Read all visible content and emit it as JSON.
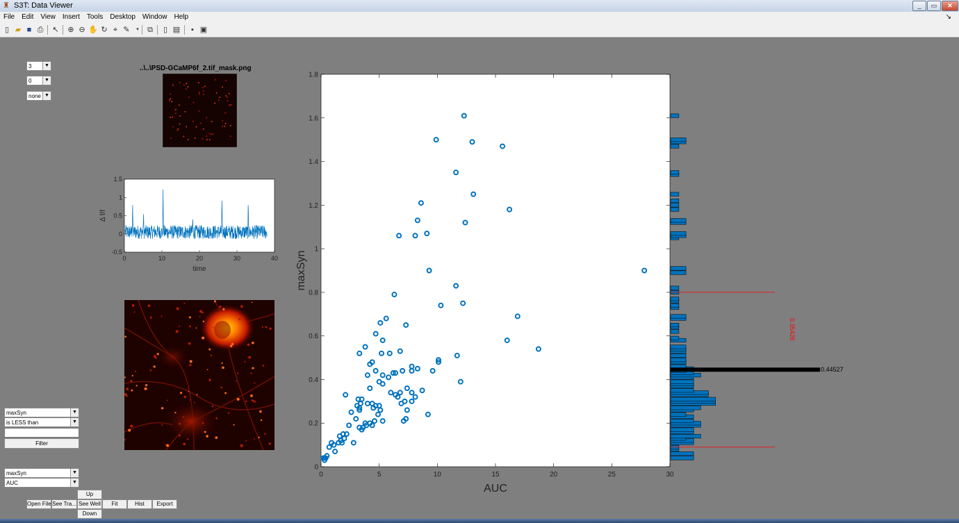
{
  "window": {
    "title": "S3T: Data Viewer",
    "minimize": "_",
    "maximize": "▭",
    "close": "✕"
  },
  "menu": [
    "File",
    "Edit",
    "View",
    "Insert",
    "Tools",
    "Desktop",
    "Window",
    "Help"
  ],
  "toolbar_icons": [
    "new-file-icon",
    "open-folder-icon",
    "save-icon",
    "print-icon",
    "pointer-icon",
    "zoom-in-icon",
    "zoom-out-icon",
    "pan-icon",
    "rotate-icon",
    "data-cursor-icon",
    "brush-icon",
    "link-icon",
    "colorbar-icon",
    "legend-icon",
    "hide-plot-tools-icon",
    "show-plot-tools-icon"
  ],
  "controls": {
    "dropdown1": "3",
    "dropdown2": "0",
    "dropdown3": "none",
    "filter_variable": "maxSyn",
    "filter_condition": "is LESS than",
    "filter_value": "",
    "filter_button": "Filter",
    "y_variable": "maxSyn",
    "x_variable": "AUC",
    "buttons": {
      "up": "Up",
      "down": "Down",
      "open_file": "Open File",
      "see_trace": "See Tra...",
      "see_well": "See Well",
      "fit": "Fit",
      "hist": "Hist",
      "export": "Export"
    }
  },
  "mask_image": {
    "title": "..\\..\\PSD-GCaMP6f_2.tif_mask.png"
  },
  "trace_plot": {
    "xlabel": "time",
    "ylabel": "Δ f/f",
    "xticks": [
      "0",
      "10",
      "20",
      "30",
      "40"
    ],
    "yticks": [
      "1.5",
      "1",
      "0.5",
      "0",
      "-0.5"
    ]
  },
  "scatter_labels": {
    "xlabel": "AUC",
    "ylabel": "maxSyn",
    "xticks": [
      "0",
      "5",
      "10",
      "15",
      "20",
      "25",
      "30"
    ],
    "yticks": [
      "0",
      "0.2",
      "0.4",
      "0.6",
      "0.8",
      "1",
      "1.2",
      "1.4",
      "1.6",
      "1.8"
    ],
    "hist_mean_label": "0.44527",
    "hist_range_label": "0.35426"
  },
  "colors": {
    "marker": "#0072bd",
    "threshold": "#ff0000",
    "mean_bar": "#000000",
    "background": "#7f7f7f"
  },
  "chart_data": [
    {
      "type": "scatter",
      "xlabel": "AUC",
      "ylabel": "maxSyn",
      "xlim": [
        0,
        30
      ],
      "ylim": [
        0,
        1.8
      ],
      "points": [
        [
          12.3,
          1.61
        ],
        [
          9.9,
          1.5
        ],
        [
          13.0,
          1.49
        ],
        [
          15.6,
          1.47
        ],
        [
          11.6,
          1.35
        ],
        [
          13.1,
          1.25
        ],
        [
          8.6,
          1.21
        ],
        [
          16.2,
          1.18
        ],
        [
          8.3,
          1.13
        ],
        [
          12.4,
          1.12
        ],
        [
          6.7,
          1.06
        ],
        [
          8.1,
          1.06
        ],
        [
          9.1,
          1.07
        ],
        [
          9.3,
          0.9
        ],
        [
          27.8,
          0.9
        ],
        [
          11.6,
          0.83
        ],
        [
          6.3,
          0.79
        ],
        [
          12.2,
          0.75
        ],
        [
          10.3,
          0.74
        ],
        [
          16.9,
          0.69
        ],
        [
          5.1,
          0.66
        ],
        [
          5.6,
          0.68
        ],
        [
          7.3,
          0.65
        ],
        [
          4.7,
          0.61
        ],
        [
          5.3,
          0.58
        ],
        [
          16.0,
          0.58
        ],
        [
          18.7,
          0.54
        ],
        [
          3.8,
          0.55
        ],
        [
          3.3,
          0.52
        ],
        [
          5.2,
          0.52
        ],
        [
          5.9,
          0.52
        ],
        [
          6.8,
          0.53
        ],
        [
          11.7,
          0.51
        ],
        [
          4.4,
          0.48
        ],
        [
          4.2,
          0.47
        ],
        [
          10.1,
          0.49
        ],
        [
          10.1,
          0.48
        ],
        [
          4.7,
          0.44
        ],
        [
          5.3,
          0.42
        ],
        [
          6.2,
          0.43
        ],
        [
          6.4,
          0.43
        ],
        [
          7.0,
          0.44
        ],
        [
          7.8,
          0.46
        ],
        [
          8.3,
          0.45
        ],
        [
          7.8,
          0.44
        ],
        [
          9.6,
          0.44
        ],
        [
          4.0,
          0.42
        ],
        [
          5.8,
          0.41
        ],
        [
          5.0,
          0.39
        ],
        [
          5.3,
          0.38
        ],
        [
          12.0,
          0.39
        ],
        [
          4.2,
          0.36
        ],
        [
          7.4,
          0.36
        ],
        [
          6.0,
          0.34
        ],
        [
          6.4,
          0.33
        ],
        [
          6.8,
          0.34
        ],
        [
          7.8,
          0.34
        ],
        [
          8.7,
          0.35
        ],
        [
          2.1,
          0.33
        ],
        [
          3.2,
          0.31
        ],
        [
          3.5,
          0.31
        ],
        [
          6.6,
          0.32
        ],
        [
          8.1,
          0.32
        ],
        [
          3.4,
          0.29
        ],
        [
          3.1,
          0.28
        ],
        [
          4.0,
          0.29
        ],
        [
          4.4,
          0.29
        ],
        [
          4.7,
          0.28
        ],
        [
          5.0,
          0.28
        ],
        [
          7.2,
          0.3
        ],
        [
          7.8,
          0.3
        ],
        [
          3.3,
          0.27
        ],
        [
          4.5,
          0.27
        ],
        [
          5.1,
          0.26
        ],
        [
          6.9,
          0.29
        ],
        [
          3.3,
          0.26
        ],
        [
          2.6,
          0.25
        ],
        [
          4.9,
          0.24
        ],
        [
          7.4,
          0.26
        ],
        [
          9.2,
          0.24
        ],
        [
          3.0,
          0.22
        ],
        [
          4.6,
          0.21
        ],
        [
          7.3,
          0.22
        ],
        [
          3.8,
          0.2
        ],
        [
          4.2,
          0.2
        ],
        [
          5.3,
          0.21
        ],
        [
          7.1,
          0.21
        ],
        [
          3.6,
          0.18
        ],
        [
          3.9,
          0.19
        ],
        [
          4.4,
          0.19
        ],
        [
          3.3,
          0.18
        ],
        [
          2.4,
          0.19
        ],
        [
          3.5,
          0.17
        ],
        [
          2.2,
          0.15
        ],
        [
          1.9,
          0.15
        ],
        [
          1.6,
          0.14
        ],
        [
          2.0,
          0.13
        ],
        [
          1.7,
          0.12
        ],
        [
          1.5,
          0.11
        ],
        [
          2.8,
          0.11
        ],
        [
          1.8,
          0.11
        ],
        [
          0.9,
          0.11
        ],
        [
          1.1,
          0.1
        ],
        [
          0.7,
          0.09
        ],
        [
          1.2,
          0.07
        ],
        [
          0.5,
          0.05
        ],
        [
          0.3,
          0.04
        ],
        [
          0.4,
          0.04
        ],
        [
          0.2,
          0.04
        ],
        [
          0.3,
          0.03
        ]
      ]
    },
    {
      "type": "bar",
      "orientation": "horizontal",
      "ylim": [
        0,
        1.8
      ],
      "bins": [
        [
          0.04,
          39
        ],
        [
          0.06,
          39
        ],
        [
          0.08,
          14
        ],
        [
          0.09,
          14
        ],
        [
          0.11,
          39
        ],
        [
          0.12,
          39
        ],
        [
          0.13,
          26
        ],
        [
          0.14,
          51
        ],
        [
          0.16,
          39
        ],
        [
          0.17,
          39
        ],
        [
          0.19,
          51
        ],
        [
          0.2,
          51
        ],
        [
          0.21,
          39
        ],
        [
          0.23,
          39
        ],
        [
          0.24,
          26
        ],
        [
          0.26,
          39
        ],
        [
          0.27,
          51
        ],
        [
          0.29,
          76
        ],
        [
          0.3,
          76
        ],
        [
          0.31,
          76
        ],
        [
          0.33,
          64
        ],
        [
          0.34,
          64
        ],
        [
          0.35,
          39
        ],
        [
          0.37,
          39
        ],
        [
          0.38,
          39
        ],
        [
          0.39,
          39
        ],
        [
          0.41,
          39
        ],
        [
          0.42,
          51
        ],
        [
          0.43,
          39
        ],
        [
          0.44,
          26
        ],
        [
          0.45,
          39
        ],
        [
          0.46,
          26
        ],
        [
          0.48,
          26
        ],
        [
          0.49,
          26
        ],
        [
          0.51,
          26
        ],
        [
          0.53,
          26
        ],
        [
          0.54,
          26
        ],
        [
          0.55,
          26
        ],
        [
          0.58,
          26
        ],
        [
          0.59,
          14
        ],
        [
          0.62,
          14
        ],
        [
          0.64,
          14
        ],
        [
          0.65,
          14
        ],
        [
          0.68,
          26
        ],
        [
          0.69,
          26
        ],
        [
          0.73,
          14
        ],
        [
          0.74,
          14
        ],
        [
          0.76,
          14
        ],
        [
          0.77,
          14
        ],
        [
          0.8,
          14
        ],
        [
          0.82,
          14
        ],
        [
          0.89,
          26
        ],
        [
          0.91,
          26
        ],
        [
          1.05,
          14
        ],
        [
          1.06,
          26
        ],
        [
          1.07,
          26
        ],
        [
          1.12,
          26
        ],
        [
          1.13,
          26
        ],
        [
          1.18,
          14
        ],
        [
          1.2,
          14
        ],
        [
          1.22,
          14
        ],
        [
          1.25,
          14
        ],
        [
          1.34,
          14
        ],
        [
          1.35,
          14
        ],
        [
          1.47,
          14
        ],
        [
          1.49,
          26
        ],
        [
          1.5,
          26
        ],
        [
          1.61,
          14
        ]
      ],
      "mean": 0.44527,
      "thresholds": [
        0.09,
        0.8
      ],
      "range_label": "0.35426"
    },
    {
      "type": "line",
      "xlabel": "time",
      "ylabel": "Δ f/f",
      "xlim": [
        0,
        40
      ],
      "ylim": [
        -0.5,
        1.5
      ]
    }
  ]
}
